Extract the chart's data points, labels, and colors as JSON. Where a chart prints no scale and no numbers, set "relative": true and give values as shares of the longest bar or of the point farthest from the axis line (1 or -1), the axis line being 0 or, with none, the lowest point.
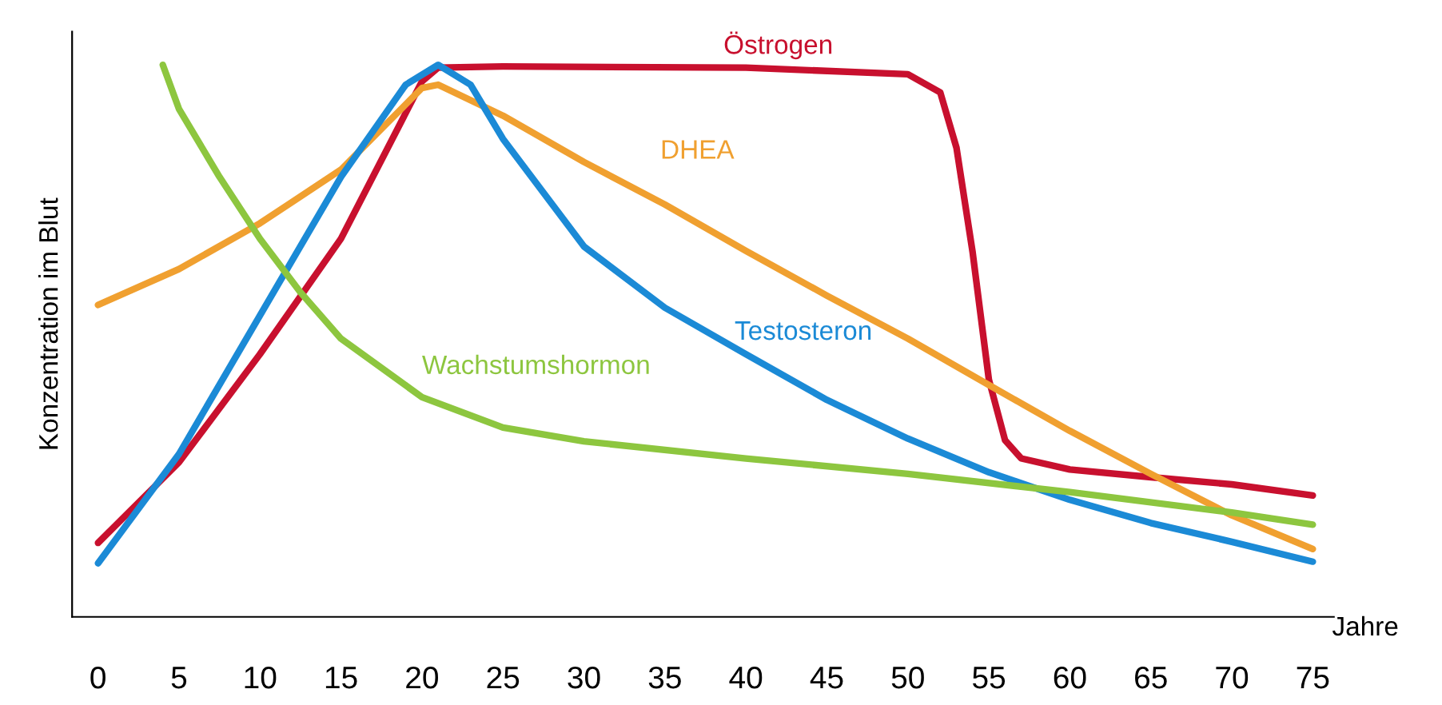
{
  "chart_data": {
    "type": "line",
    "relative": true,
    "ylabel": "Konzentration im Blut",
    "xlabel": "Jahre",
    "xlim": [
      -1.6,
      76.3
    ],
    "xticks": [
      0,
      5,
      10,
      15,
      20,
      25,
      30,
      35,
      40,
      45,
      50,
      55,
      60,
      65,
      70,
      75
    ],
    "grid": false,
    "legend": false,
    "marker": "none",
    "line_style": "solid",
    "series": [
      {
        "name": "Östrogen",
        "color": "#c8102e",
        "x": [
          0,
          5,
          10,
          15,
          20,
          21,
          25,
          40,
          50,
          52,
          53,
          54,
          55,
          56,
          57,
          60,
          65,
          70,
          75
        ],
        "values": [
          0.134,
          0.28,
          0.476,
          0.685,
          0.97,
          0.995,
          0.997,
          0.995,
          0.983,
          0.95,
          0.85,
          0.66,
          0.43,
          0.32,
          0.287,
          0.267,
          0.253,
          0.24,
          0.22
        ]
      },
      {
        "name": "DHEA",
        "color": "#f0a030",
        "x": [
          0,
          5,
          10,
          15,
          20,
          21,
          25,
          30,
          35,
          40,
          45,
          50,
          55,
          60,
          65,
          70,
          75
        ],
        "values": [
          0.565,
          0.63,
          0.713,
          0.81,
          0.958,
          0.964,
          0.908,
          0.824,
          0.747,
          0.663,
          0.582,
          0.504,
          0.42,
          0.337,
          0.259,
          0.184,
          0.123
        ]
      },
      {
        "name": "Testosteron",
        "color": "#1b8ad6",
        "x": [
          0,
          5,
          10,
          15,
          19,
          21,
          23,
          25,
          30,
          35,
          40,
          45,
          50,
          55,
          60,
          65,
          70,
          75
        ],
        "values": [
          0.097,
          0.295,
          0.546,
          0.797,
          0.964,
          1.0,
          0.964,
          0.866,
          0.671,
          0.56,
          0.476,
          0.393,
          0.323,
          0.262,
          0.212,
          0.17,
          0.136,
          0.1
        ]
      },
      {
        "name": "Wachstumshormon",
        "color": "#8dc63f",
        "x": [
          4,
          5,
          7.5,
          10,
          12.5,
          15,
          20,
          25,
          30,
          40,
          50,
          60,
          70,
          75
        ],
        "values": [
          1.0,
          0.92,
          0.797,
          0.685,
          0.588,
          0.504,
          0.398,
          0.343,
          0.318,
          0.287,
          0.259,
          0.226,
          0.189,
          0.167
        ]
      }
    ]
  }
}
